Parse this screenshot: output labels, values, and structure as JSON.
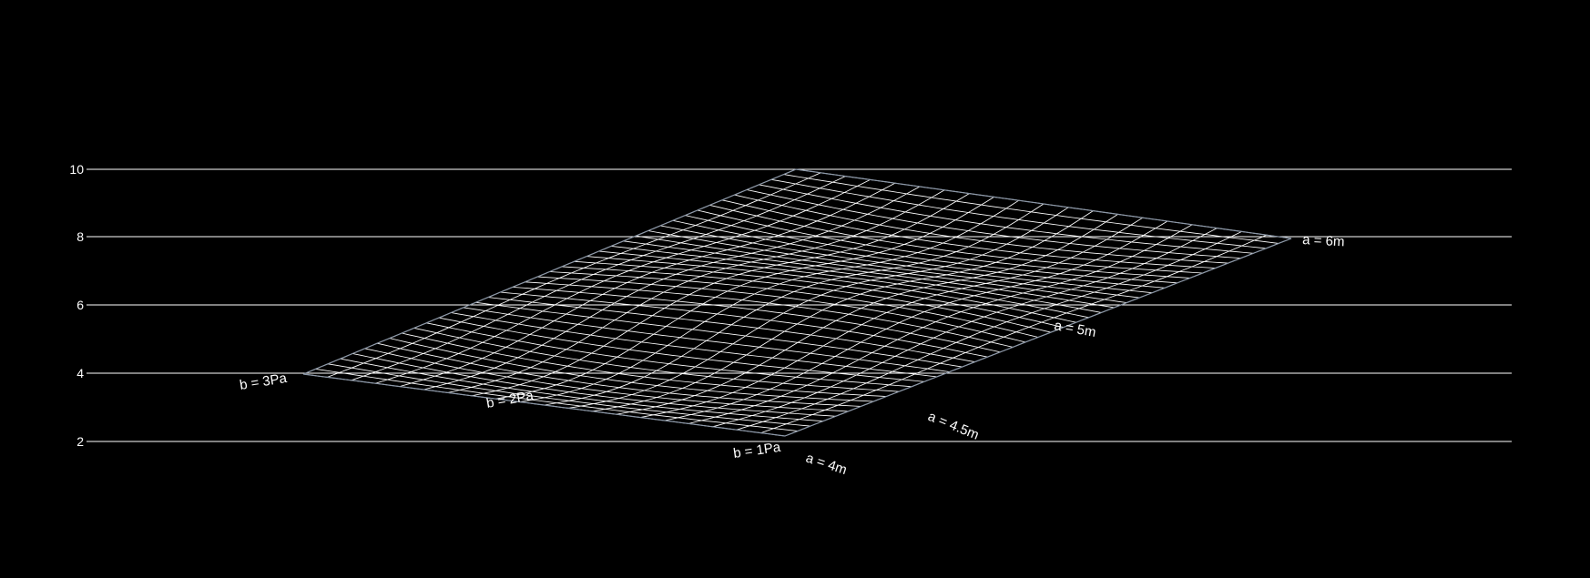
{
  "chart_data": {
    "type": "carpet",
    "y_ticks": [
      "2",
      "4",
      "6",
      "8",
      "10"
    ],
    "ylim": [
      2,
      10
    ],
    "grid": true,
    "background": "#000000",
    "line_color": "#ffffff",
    "a_axis": {
      "title": "a",
      "unit": "m",
      "range": [
        4,
        6
      ],
      "labels": [
        "a = 4m",
        "a = 4.5m",
        "a = 5m",
        "a = 6m"
      ]
    },
    "b_axis": {
      "title": "b",
      "unit": "Pa",
      "range": [
        1,
        3
      ],
      "labels": [
        "b = 1Pa",
        "b = 2Pa",
        "b = 3Pa"
      ]
    },
    "corners": [
      {
        "a": 4,
        "b": 1,
        "y": 2
      },
      {
        "a": 6,
        "b": 1,
        "y": 8
      },
      {
        "a": 4,
        "b": 3,
        "y": 4
      },
      {
        "a": 6,
        "b": 3,
        "y": 10
      }
    ]
  }
}
